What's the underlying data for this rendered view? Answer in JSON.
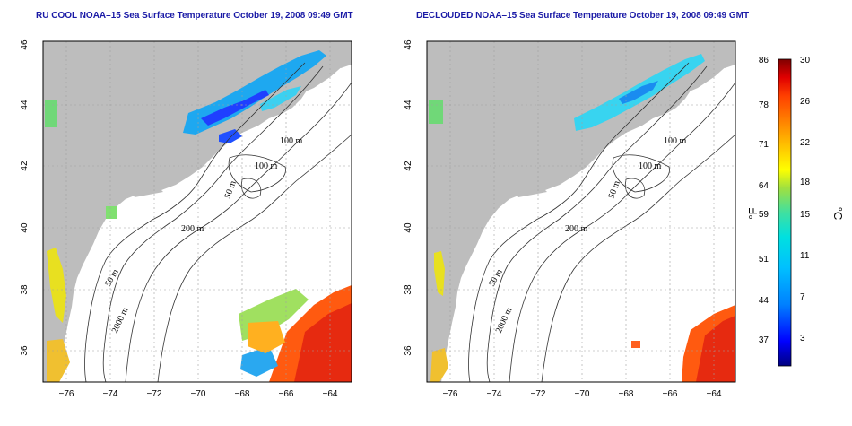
{
  "panels": [
    {
      "id": "left",
      "title": "RU COOL NOAA–15 Sea Surface Temperature October 19, 2008 09:49 GMT",
      "contour_labels": [
        "100 m",
        "100 m",
        "50 m",
        "200 m",
        "50 m",
        "2000 m"
      ]
    },
    {
      "id": "right",
      "title": "DECLOUDED NOAA–15 Sea Surface Temperature October 19, 2008 09:49 GMT",
      "contour_labels": [
        "100 m",
        "100 m",
        "50 m",
        "200 m",
        "50 m",
        "2000 m"
      ]
    }
  ],
  "axes": {
    "lat_ticks": [
      "46",
      "44",
      "42",
      "40",
      "38",
      "36"
    ],
    "lon_ticks": [
      "−76",
      "−74",
      "−72",
      "−70",
      "−68",
      "−66",
      "−64"
    ]
  },
  "colorbar": {
    "fahrenheit_ticks": [
      "86",
      "78",
      "71",
      "64",
      "59",
      "51",
      "44",
      "37"
    ],
    "celsius_ticks": [
      "30",
      "26",
      "22",
      "18",
      "15",
      "11",
      "7",
      "3"
    ],
    "fahrenheit_unit": "°F",
    "celsius_unit": "°C",
    "colors": [
      "#000080",
      "#0000ff",
      "#0080ff",
      "#00c0ff",
      "#00e0e0",
      "#40e0a0",
      "#a0e040",
      "#ffff00",
      "#ffc000",
      "#ff8000",
      "#ff4000",
      "#e00000",
      "#800000"
    ]
  },
  "map_colors": {
    "land": "#bdbdbd",
    "ocean": "#ffffff",
    "grid": "#a0a0a0"
  }
}
